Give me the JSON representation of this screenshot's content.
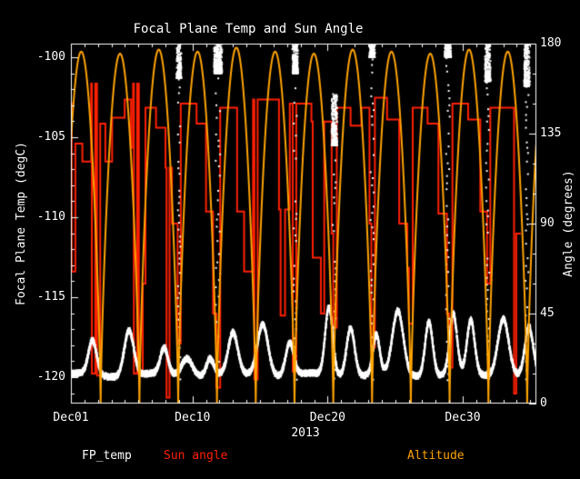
{
  "chart_data": {
    "type": "line",
    "title": "Focal Plane Temp and Sun Angle",
    "background": "#000000",
    "frame_color": "#ffffff",
    "axes": {
      "left": {
        "label": "Focal Plane Temp (degC)",
        "range_top": -99.15,
        "range_bottom": -121.65,
        "major_ticks": [
          {
            "value": -100,
            "label": "-100"
          },
          {
            "value": -105,
            "label": "-105"
          },
          {
            "value": -110,
            "label": "-110"
          },
          {
            "value": -115,
            "label": "-115"
          },
          {
            "value": -120,
            "label": "-120"
          }
        ],
        "minor_step": 1
      },
      "right": {
        "label": "Angle (degrees)",
        "range_top": 180,
        "range_bottom": 0,
        "major_ticks": [
          {
            "value": 180,
            "label": "180"
          },
          {
            "value": 135,
            "label": "135"
          },
          {
            "value": 90,
            "label": "90"
          },
          {
            "value": 45,
            "label": "45"
          },
          {
            "value": 0,
            "label": "0"
          }
        ],
        "minor_step": 15
      },
      "bottom": {
        "label": "2013",
        "range_days": [
          0,
          34.45
        ],
        "major_ticks": [
          {
            "day": 0,
            "label": "Dec01"
          },
          {
            "day": 9,
            "label": "Dec10"
          },
          {
            "day": 19,
            "label": "Dec20"
          },
          {
            "day": 29,
            "label": "Dec30"
          }
        ],
        "minor_step_days": 1
      }
    },
    "legend": [
      {
        "label": "FP_temp",
        "color": "#ffffff"
      },
      {
        "label": "Sun angle",
        "color": "#ff2000"
      },
      {
        "label": "Altitude",
        "color": "#ffa400"
      }
    ],
    "series": {
      "fp_temp": {
        "name": "FP_temp",
        "axis": "left",
        "color": "#ffffff",
        "style": "dense-symbol-trace",
        "baseline": -119.85,
        "baseline_wobble_amp": 0.12,
        "noise_amp": 0.28,
        "bumps": [
          [
            1.6,
            -117.7,
            0.3
          ],
          [
            4.3,
            -117.0,
            0.35
          ],
          [
            6.9,
            -118.2,
            0.28
          ],
          [
            8.6,
            -118.7,
            0.4
          ],
          [
            10.3,
            -118.8,
            0.28
          ],
          [
            12.0,
            -117.3,
            0.35
          ],
          [
            14.2,
            -116.6,
            0.4
          ],
          [
            16.2,
            -117.8,
            0.3
          ],
          [
            19.1,
            -115.6,
            0.28
          ],
          [
            20.7,
            -116.8,
            0.3
          ],
          [
            22.6,
            -117.4,
            0.25
          ],
          [
            24.2,
            -115.9,
            0.4
          ],
          [
            26.5,
            -116.4,
            0.28
          ],
          [
            28.3,
            -116.1,
            0.28
          ],
          [
            29.6,
            -116.5,
            0.28
          ],
          [
            32.0,
            -116.2,
            0.4
          ],
          [
            33.9,
            -116.9,
            0.3
          ]
        ],
        "thermal_spikes": [
          [
            8.0,
            -101.3,
            2.5
          ],
          [
            10.9,
            -101.0,
            4.5
          ],
          [
            16.6,
            -101.0,
            3.0
          ],
          [
            19.5,
            -105.5,
            3.0
          ],
          [
            22.3,
            -100.0,
            3.0
          ],
          [
            27.9,
            -100.0,
            3.5
          ],
          [
            30.85,
            -101.5,
            3.0
          ],
          [
            33.75,
            -101.8,
            3.0
          ]
        ]
      },
      "sun_angle": {
        "name": "Sun angle",
        "axis": "right",
        "color": "#ff2000",
        "style": "steps",
        "points": [
          [
            0,
            150
          ],
          [
            0.06,
            66
          ],
          [
            0.28,
            66
          ],
          [
            0.33,
            130
          ],
          [
            0.8,
            130
          ],
          [
            0.85,
            121
          ],
          [
            1.45,
            121
          ],
          [
            1.5,
            160
          ],
          [
            1.55,
            15
          ],
          [
            1.75,
            15
          ],
          [
            1.8,
            160
          ],
          [
            1.88,
            160
          ],
          [
            1.93,
            14
          ],
          [
            2.1,
            14
          ],
          [
            2.17,
            140
          ],
          [
            2.45,
            140
          ],
          [
            2.55,
            121
          ],
          [
            2.95,
            121
          ],
          [
            3.05,
            143
          ],
          [
            3.9,
            143
          ],
          [
            3.98,
            152
          ],
          [
            4.35,
            152
          ],
          [
            4.45,
            128
          ],
          [
            4.6,
            160
          ],
          [
            4.66,
            15
          ],
          [
            4.84,
            15
          ],
          [
            4.9,
            160
          ],
          [
            4.97,
            160
          ],
          [
            5.03,
            14
          ],
          [
            5.25,
            14
          ],
          [
            5.32,
            60
          ],
          [
            5.45,
            60
          ],
          [
            5.52,
            148
          ],
          [
            6.2,
            148
          ],
          [
            6.3,
            138
          ],
          [
            6.9,
            138
          ],
          [
            7.0,
            118
          ],
          [
            7.08,
            3
          ],
          [
            7.22,
            3
          ],
          [
            7.3,
            118
          ],
          [
            7.38,
            118
          ],
          [
            7.48,
            90
          ],
          [
            7.8,
            90
          ],
          [
            7.9,
            30
          ],
          [
            8.05,
            30
          ],
          [
            8.13,
            150
          ],
          [
            9.2,
            150
          ],
          [
            9.3,
            140
          ],
          [
            9.9,
            140
          ],
          [
            10.0,
            96
          ],
          [
            10.4,
            96
          ],
          [
            10.52,
            45
          ],
          [
            10.68,
            45
          ],
          [
            10.76,
            8
          ],
          [
            10.95,
            8
          ],
          [
            11.05,
            148
          ],
          [
            12.2,
            148
          ],
          [
            12.3,
            96
          ],
          [
            12.72,
            96
          ],
          [
            12.82,
            66
          ],
          [
            13.4,
            66
          ],
          [
            13.48,
            152
          ],
          [
            13.58,
            12
          ],
          [
            13.72,
            12
          ],
          [
            13.82,
            152
          ],
          [
            15.3,
            152
          ],
          [
            15.4,
            97
          ],
          [
            15.52,
            44
          ],
          [
            15.75,
            44
          ],
          [
            15.85,
            97
          ],
          [
            16.1,
            97
          ],
          [
            16.2,
            150
          ],
          [
            16.42,
            16
          ],
          [
            16.6,
            16
          ],
          [
            16.68,
            150
          ],
          [
            17.7,
            150
          ],
          [
            17.8,
            141
          ],
          [
            17.9,
            73
          ],
          [
            18.4,
            73
          ],
          [
            18.5,
            45
          ],
          [
            18.65,
            45
          ],
          [
            18.75,
            141
          ],
          [
            19.2,
            141
          ],
          [
            19.3,
            85
          ],
          [
            19.42,
            38
          ],
          [
            19.58,
            38
          ],
          [
            19.68,
            148
          ],
          [
            20.6,
            148
          ],
          [
            20.7,
            139
          ],
          [
            21.4,
            139
          ],
          [
            21.5,
            148
          ],
          [
            22.0,
            148
          ],
          [
            22.1,
            90
          ],
          [
            22.24,
            28
          ],
          [
            22.4,
            28
          ],
          [
            22.5,
            153
          ],
          [
            23.3,
            153
          ],
          [
            23.4,
            142
          ],
          [
            24.2,
            142
          ],
          [
            24.3,
            90
          ],
          [
            24.78,
            90
          ],
          [
            24.9,
            68
          ],
          [
            25.02,
            40
          ],
          [
            25.2,
            40
          ],
          [
            25.3,
            148
          ],
          [
            26.3,
            148
          ],
          [
            26.4,
            140
          ],
          [
            27.1,
            140
          ],
          [
            27.2,
            95
          ],
          [
            27.7,
            95
          ],
          [
            27.83,
            45
          ],
          [
            27.98,
            18
          ],
          [
            28.14,
            18
          ],
          [
            28.24,
            150
          ],
          [
            29.3,
            150
          ],
          [
            29.4,
            142
          ],
          [
            30.2,
            142
          ],
          [
            30.3,
            96
          ],
          [
            30.7,
            96
          ],
          [
            30.8,
            60
          ],
          [
            30.94,
            60
          ],
          [
            31.04,
            148
          ],
          [
            32.2,
            148
          ],
          [
            32.75,
            148
          ],
          [
            32.8,
            5
          ],
          [
            32.9,
            5
          ],
          [
            32.96,
            85
          ],
          [
            33.3,
            85
          ]
        ]
      },
      "altitude": {
        "name": "Altitude",
        "axis": "right",
        "color": "#ffa400",
        "style": "arches",
        "period_days": 2.87,
        "first_perigee_day": 2.2,
        "shape_exponent": 0.75,
        "arch_peaks": [
          176,
          175,
          177,
          176,
          178,
          176,
          175,
          177,
          176,
          175,
          177,
          176,
          175
        ]
      }
    }
  }
}
